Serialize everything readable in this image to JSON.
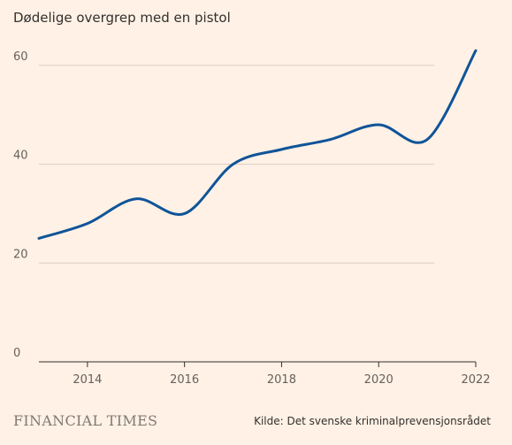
{
  "chart_data": {
    "type": "line",
    "title": "Dødelige overgrep med en pistol",
    "xlabel": "",
    "ylabel": "",
    "x": [
      2013,
      2014,
      2015,
      2016,
      2017,
      2018,
      2019,
      2020,
      2021,
      2022
    ],
    "series": [
      {
        "values": [
          25,
          28,
          33,
          30,
          40,
          43,
          45,
          48,
          45,
          63
        ],
        "color": "#0f5499"
      }
    ],
    "xlim": [
      2013,
      2022
    ],
    "ylim": [
      0,
      65
    ],
    "x_ticks": [
      "2014",
      "2016",
      "2018",
      "2020",
      "2022"
    ],
    "y_ticks": [
      "0",
      "20",
      "40",
      "60"
    ],
    "grid": "horizontal",
    "colors": {
      "background": "#fff1e5",
      "grid": "#d9ccc1",
      "axis": "#33302e",
      "line": "#0f5499"
    }
  },
  "footer": {
    "brand": "FINANCIAL TIMES",
    "source": "Kilde: Det svenske kriminalprevensjonsrådet"
  }
}
